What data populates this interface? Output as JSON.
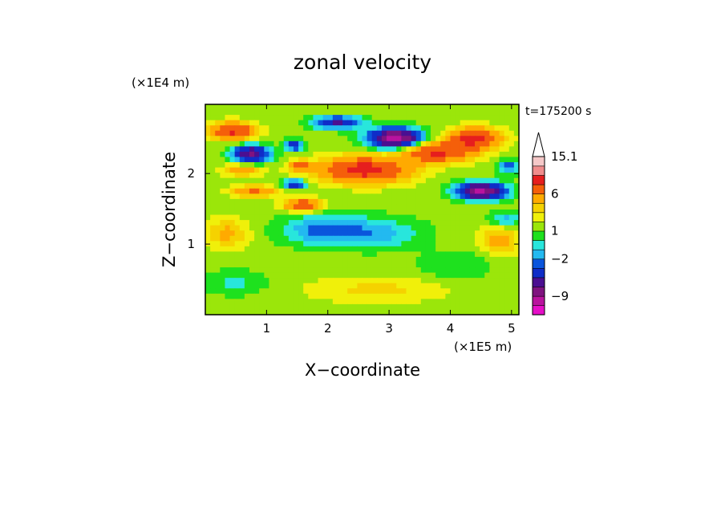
{
  "chart_data": {
    "type": "heatmap",
    "title": "zonal velocity",
    "xlabel": "X−coordinate",
    "ylabel": "Z−coordinate",
    "x_scale_label": "(×1E5 m)",
    "y_scale_label": "(×1E4 m)",
    "time_label": "t=175200 s",
    "xlim": [
      0,
      5.12
    ],
    "ylim": [
      0,
      2.98
    ],
    "x_ticks": [
      {
        "value": 1,
        "label": "1"
      },
      {
        "value": 2,
        "label": "2"
      },
      {
        "value": 3,
        "label": "3"
      },
      {
        "value": 4,
        "label": "4"
      },
      {
        "value": 5,
        "label": "5"
      }
    ],
    "y_ticks": [
      {
        "value": 1,
        "label": "1"
      },
      {
        "value": 2,
        "label": "2"
      }
    ],
    "colorbar": {
      "levels": [
        -13,
        -11,
        -9,
        -7,
        -5,
        -3,
        -2,
        -1,
        0,
        1,
        2,
        3,
        4,
        6,
        9,
        12,
        15.1
      ],
      "colors": [
        "#e60fc8",
        "#b9139e",
        "#7f137f",
        "#4b0f91",
        "#0f2dc8",
        "#0a55dc",
        "#23b9f0",
        "#28e6dc",
        "#1ee11e",
        "#9be60a",
        "#f0f00a",
        "#f5d200",
        "#ffaa00",
        "#f55f0a",
        "#e61e1e",
        "#f08c8c",
        "#f5c8c8"
      ],
      "labels": [
        {
          "value": 15.1,
          "label": "15.1"
        },
        {
          "value": 6,
          "label": "6"
        },
        {
          "value": 1,
          "label": "1"
        },
        {
          "value": -2,
          "label": "−2"
        },
        {
          "value": -9,
          "label": "−9"
        }
      ],
      "extend_max": true
    },
    "field": {
      "background": 1.5,
      "features": [
        {
          "x": 0.45,
          "z": 2.6,
          "rx": 0.35,
          "rz": 0.12,
          "a": 8
        },
        {
          "x": 0.75,
          "z": 2.28,
          "rx": 0.3,
          "rz": 0.12,
          "a": -9
        },
        {
          "x": 1.45,
          "z": 2.4,
          "rx": 0.15,
          "rz": 0.08,
          "a": -6
        },
        {
          "x": 1.55,
          "z": 2.1,
          "rx": 0.2,
          "rz": 0.08,
          "a": 5
        },
        {
          "x": 1.45,
          "z": 1.85,
          "rx": 0.18,
          "rz": 0.06,
          "a": -7
        },
        {
          "x": 2.15,
          "z": 2.72,
          "rx": 0.4,
          "rz": 0.09,
          "a": -7
        },
        {
          "x": 3.1,
          "z": 2.5,
          "rx": 0.42,
          "rz": 0.14,
          "a": -12
        },
        {
          "x": 2.6,
          "z": 2.05,
          "rx": 0.7,
          "rz": 0.18,
          "a": 9
        },
        {
          "x": 3.8,
          "z": 2.3,
          "rx": 0.55,
          "rz": 0.14,
          "a": 8
        },
        {
          "x": 4.4,
          "z": 2.5,
          "rx": 0.4,
          "rz": 0.14,
          "a": 9
        },
        {
          "x": 4.5,
          "z": 1.75,
          "rx": 0.4,
          "rz": 0.12,
          "a": -11
        },
        {
          "x": 4.95,
          "z": 2.1,
          "rx": 0.2,
          "rz": 0.1,
          "a": -4
        },
        {
          "x": 1.6,
          "z": 1.55,
          "rx": 0.3,
          "rz": 0.09,
          "a": 7
        },
        {
          "x": 0.8,
          "z": 1.75,
          "rx": 0.35,
          "rz": 0.08,
          "a": 5
        },
        {
          "x": 1.95,
          "z": 1.2,
          "rx": 0.7,
          "rz": 0.22,
          "a": -4
        },
        {
          "x": 2.9,
          "z": 1.15,
          "rx": 0.7,
          "rz": 0.22,
          "a": -2.5
        },
        {
          "x": 0.35,
          "z": 1.15,
          "rx": 0.35,
          "rz": 0.2,
          "a": 3
        },
        {
          "x": 0.5,
          "z": 0.45,
          "rx": 0.5,
          "rz": 0.18,
          "a": -1.8
        },
        {
          "x": 2.8,
          "z": 0.35,
          "rx": 1.1,
          "rz": 0.18,
          "a": 1.8
        },
        {
          "x": 4.1,
          "z": 0.7,
          "rx": 0.6,
          "rz": 0.2,
          "a": -1.5
        },
        {
          "x": 4.8,
          "z": 1.05,
          "rx": 0.3,
          "rz": 0.2,
          "a": 3.5
        },
        {
          "x": 0.6,
          "z": 2.05,
          "rx": 0.3,
          "rz": 0.08,
          "a": 4
        },
        {
          "x": 4.9,
          "z": 1.35,
          "rx": 0.25,
          "rz": 0.12,
          "a": -3
        }
      ]
    }
  }
}
